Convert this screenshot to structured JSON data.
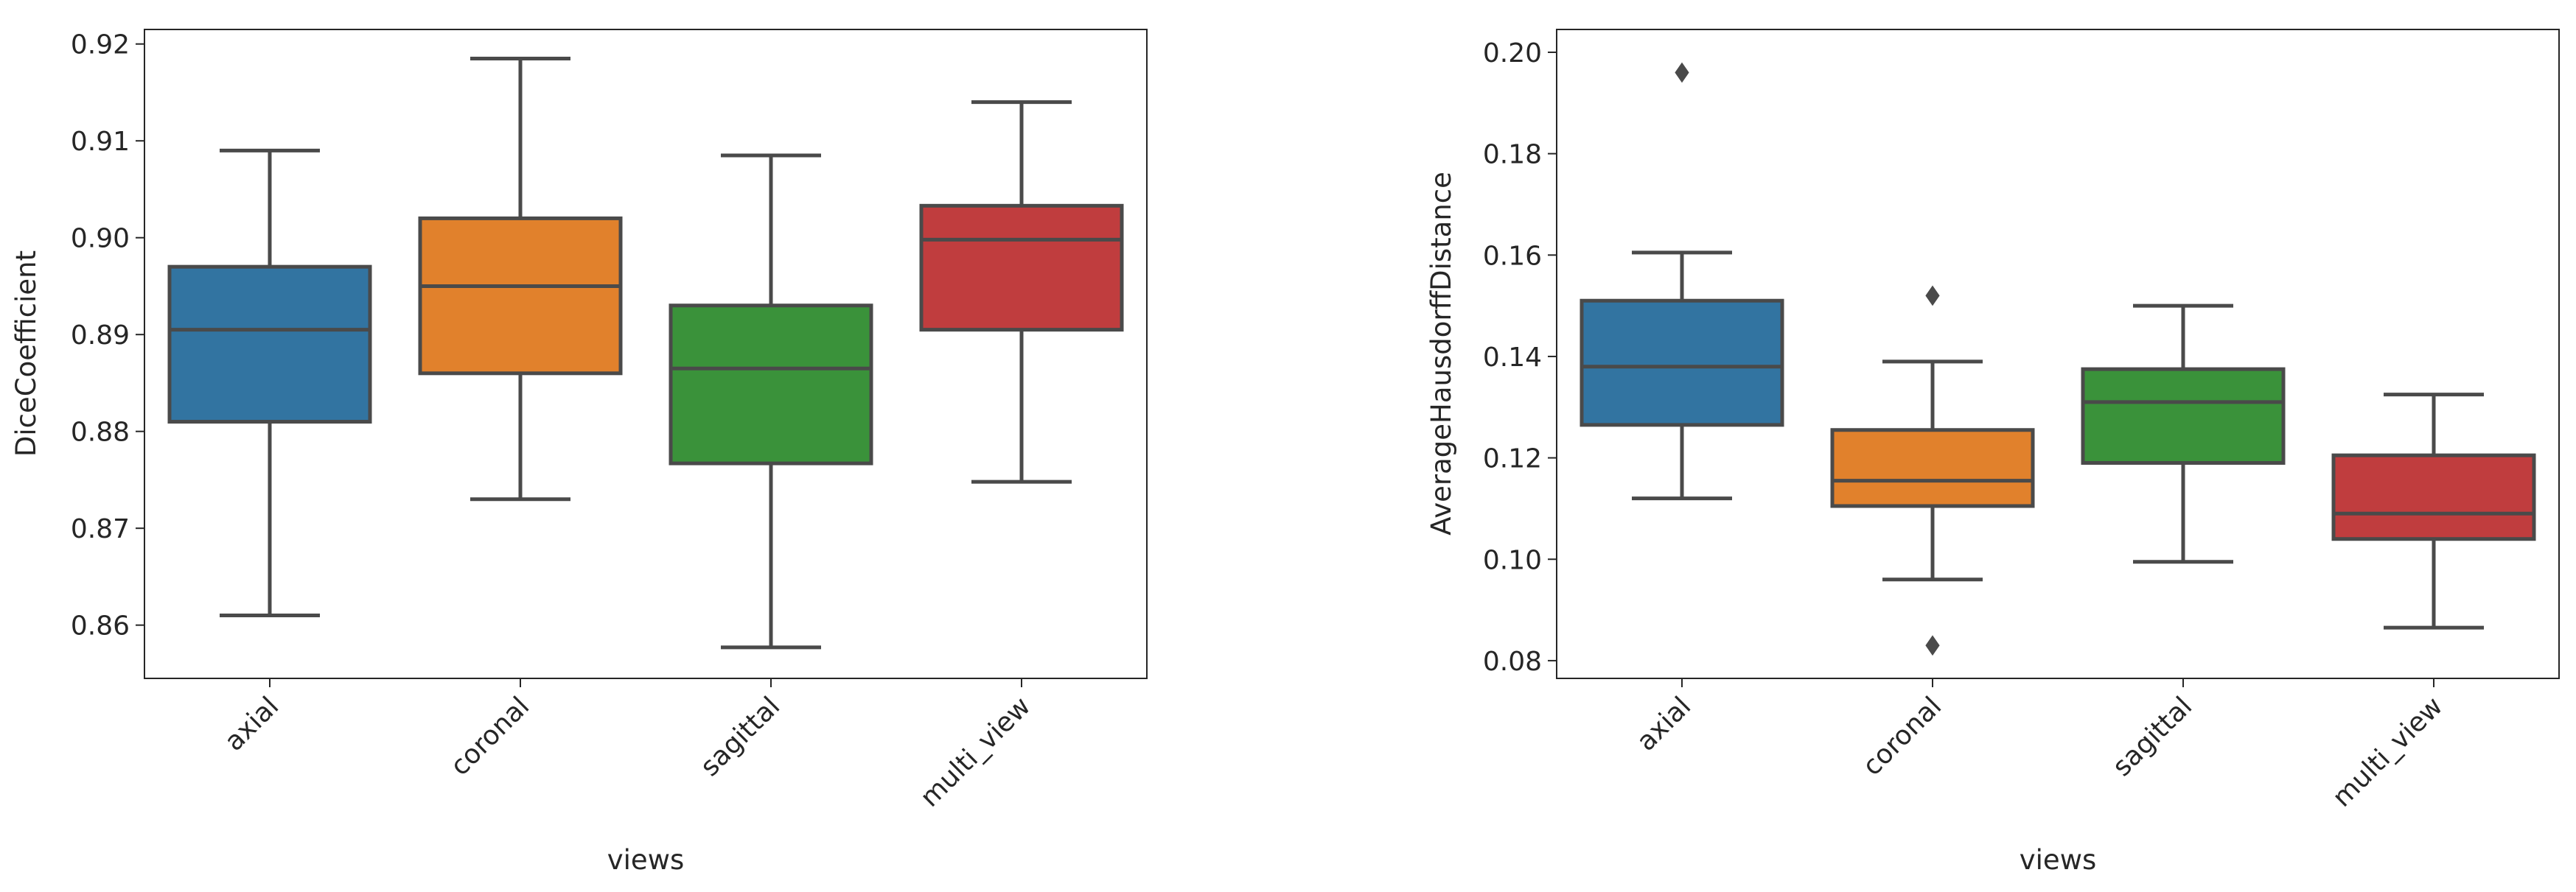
{
  "chart_data": [
    {
      "type": "box",
      "title": "",
      "xlabel": "views",
      "ylabel": "DiceCoefficient",
      "categories": [
        "axial",
        "coronal",
        "sagittal",
        "multi_view"
      ],
      "colors": [
        "#3274a1",
        "#e1812c",
        "#3a923a",
        "#c03d3e"
      ],
      "ylim": [
        0.8545,
        0.9215
      ],
      "yticks": [
        0.86,
        0.87,
        0.88,
        0.89,
        0.9,
        0.91,
        0.92
      ],
      "ytick_labels": [
        "0.86",
        "0.87",
        "0.88",
        "0.89",
        "0.90",
        "0.91",
        "0.92"
      ],
      "boxes": [
        {
          "whisker_low": 0.861,
          "q1": 0.881,
          "median": 0.8905,
          "q3": 0.897,
          "whisker_high": 0.909,
          "outliers": []
        },
        {
          "whisker_low": 0.873,
          "q1": 0.886,
          "median": 0.895,
          "q3": 0.902,
          "whisker_high": 0.9185,
          "outliers": []
        },
        {
          "whisker_low": 0.8577,
          "q1": 0.8767,
          "median": 0.8865,
          "q3": 0.893,
          "whisker_high": 0.9085,
          "outliers": []
        },
        {
          "whisker_low": 0.8748,
          "q1": 0.8905,
          "median": 0.8998,
          "q3": 0.9033,
          "whisker_high": 0.914,
          "outliers": []
        }
      ]
    },
    {
      "type": "box",
      "title": "",
      "xlabel": "views",
      "ylabel": "AverageHausdorffDistance",
      "categories": [
        "axial",
        "coronal",
        "sagittal",
        "multi_view"
      ],
      "colors": [
        "#3274a1",
        "#e1812c",
        "#3a923a",
        "#c03d3e"
      ],
      "ylim": [
        0.0765,
        0.2045
      ],
      "yticks": [
        0.08,
        0.1,
        0.12,
        0.14,
        0.16,
        0.18,
        0.2
      ],
      "ytick_labels": [
        "0.08",
        "0.10",
        "0.12",
        "0.14",
        "0.16",
        "0.18",
        "0.20"
      ],
      "boxes": [
        {
          "whisker_low": 0.112,
          "q1": 0.1265,
          "median": 0.138,
          "q3": 0.151,
          "whisker_high": 0.1605,
          "outliers": [
            0.196
          ]
        },
        {
          "whisker_low": 0.096,
          "q1": 0.1105,
          "median": 0.1155,
          "q3": 0.1255,
          "whisker_high": 0.139,
          "outliers": [
            0.152,
            0.083
          ]
        },
        {
          "whisker_low": 0.0995,
          "q1": 0.119,
          "median": 0.131,
          "q3": 0.1375,
          "whisker_high": 0.15,
          "outliers": []
        },
        {
          "whisker_low": 0.0865,
          "q1": 0.104,
          "median": 0.109,
          "q3": 0.1205,
          "whisker_high": 0.1325,
          "outliers": []
        }
      ]
    }
  ]
}
